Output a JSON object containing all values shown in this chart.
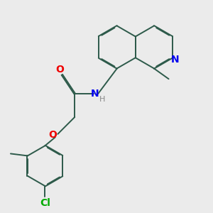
{
  "bg_color": "#ebebeb",
  "bond_color": "#2d5a4a",
  "N_color": "#0000ee",
  "O_color": "#ee0000",
  "Cl_color": "#00aa00",
  "H_color": "#888888",
  "lw": 1.4,
  "dbo": 0.018,
  "xlim": [
    0,
    10
  ],
  "ylim": [
    0,
    10
  ]
}
